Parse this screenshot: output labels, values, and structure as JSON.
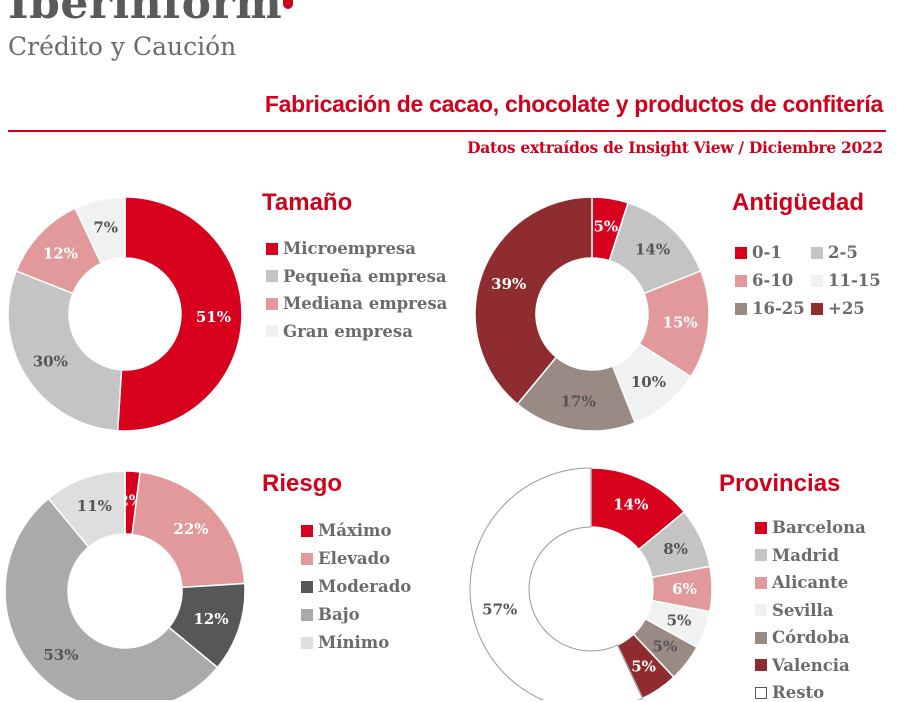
{
  "header": {
    "brand": "Iberinform",
    "subtitle": "Crédito y Caución",
    "title": "Fabricación de cacao, chocolate y productos de confitería",
    "source": "Datos extraídos de Insight View / Diciembre  2022"
  },
  "colors": {
    "accent": "#d0021b"
  },
  "chart_data": [
    {
      "type": "pie",
      "id": "tamano",
      "title": "Tamaño",
      "categories": [
        "Microempresa",
        "Pequeña empresa",
        "Mediana empresa",
        "Gran empresa"
      ],
      "values": [
        51,
        30,
        12,
        7
      ],
      "labels": [
        "51%",
        "30%",
        "12%",
        "7%"
      ],
      "colors": [
        "#d7001d",
        "#c4c4c4",
        "#e2999c",
        "#f1f1f1"
      ],
      "legend_placement": "right"
    },
    {
      "type": "pie",
      "id": "antiguedad",
      "title": "Antigüedad",
      "categories": [
        "0-1",
        "2-5",
        "6-10",
        "11-15",
        "16-25",
        "+25"
      ],
      "values": [
        5,
        14,
        15,
        10,
        17,
        39
      ],
      "labels": [
        "5%",
        "14%",
        "15%",
        "10%",
        "17%",
        "39%"
      ],
      "colors": [
        "#d7001d",
        "#c4c4c4",
        "#e2999c",
        "#f1f1f1",
        "#9a8a84",
        "#8f2c2f"
      ],
      "legend_placement": "top"
    },
    {
      "type": "pie",
      "id": "riesgo",
      "title": "Riesgo",
      "categories": [
        "Máximo",
        "Elevado",
        "Moderado",
        "Bajo",
        "Mínimo"
      ],
      "values": [
        2,
        22,
        12,
        53,
        11
      ],
      "labels": [
        "2%",
        "22%",
        "12%",
        "53%",
        "11%"
      ],
      "colors": [
        "#d7001d",
        "#e2999c",
        "#575757",
        "#aaaaaa",
        "#dedede"
      ],
      "legend_placement": "right"
    },
    {
      "type": "pie",
      "id": "provincias",
      "title": "Provincias",
      "categories": [
        "Barcelona",
        "Madrid",
        "Alicante",
        "Sevilla",
        "Córdoba",
        "Valencia",
        "Resto"
      ],
      "values": [
        14,
        8,
        6,
        5,
        5,
        5,
        57
      ],
      "labels": [
        "14%",
        "8%",
        "6%",
        "5%",
        "5%",
        "5%",
        "57%"
      ],
      "colors": [
        "#d7001d",
        "#c4c4c4",
        "#e2999c",
        "#f1f1f1",
        "#9a8a84",
        "#8f2c2f",
        "#ffffff"
      ],
      "legend_placement": "right"
    }
  ]
}
